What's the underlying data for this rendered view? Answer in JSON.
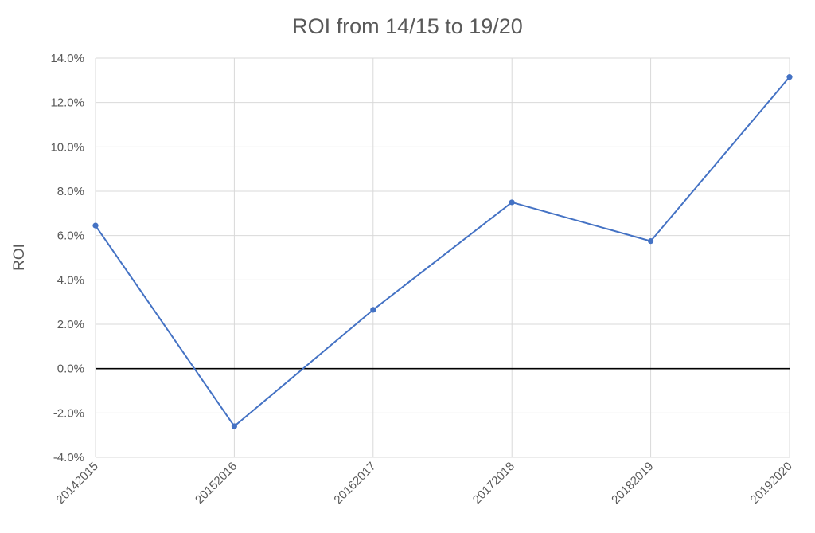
{
  "chart_data": {
    "type": "line",
    "title": "ROI from 14/15 to 19/20",
    "xlabel": "",
    "ylabel": "ROI",
    "categories": [
      "20142015",
      "20152016",
      "20162017",
      "20172018",
      "20182019",
      "20192020"
    ],
    "series": [
      {
        "values": [
          6.45,
          -2.6,
          2.65,
          7.5,
          5.75,
          13.15
        ],
        "color": "#4472C4"
      }
    ],
    "y_ticks": [
      "-4.0%",
      "-2.0%",
      "0.0%",
      "2.0%",
      "4.0%",
      "6.0%",
      "8.0%",
      "10.0%",
      "12.0%",
      "14.0%"
    ],
    "ylim": [
      -4,
      14
    ],
    "y_unit": "%",
    "grid": true,
    "zero_line_color": "#000000",
    "grid_color": "#D9D9D9"
  }
}
